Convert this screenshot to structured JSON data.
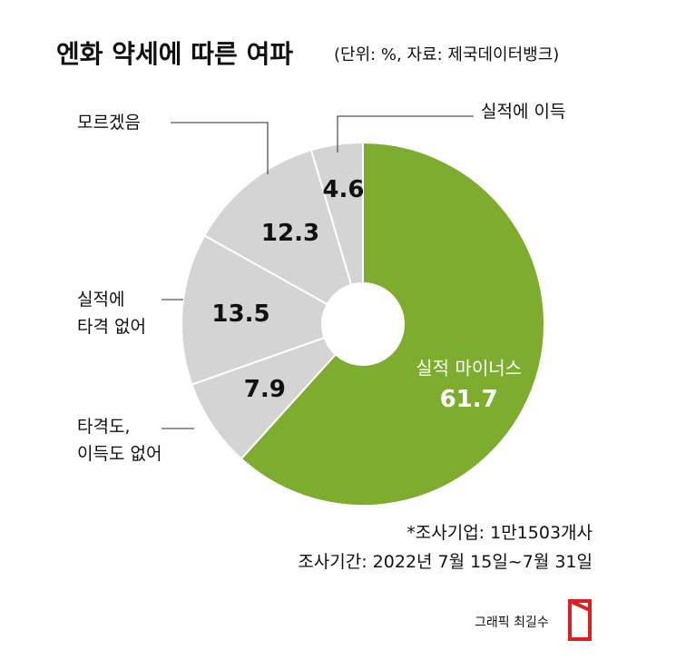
{
  "chart_data": {
    "type": "donut",
    "title": "엔화 약세에 따른 여파",
    "subtitle": "(단위: %, 자료: 제국데이터뱅크)",
    "categories": [
      "실적 마이너스",
      "타격도,\n이득도 없어",
      "실적에\n타격 없어",
      "모르겠음",
      "실적에 이득"
    ],
    "values": [
      61.7,
      7.9,
      13.5,
      12.3,
      4.6
    ],
    "colors": [
      "#7dac2e",
      "#d4d4d4",
      "#d4d4d4",
      "#d4d4d4",
      "#d4d4d4"
    ],
    "notes": [
      "*조사기업: 1만1503개사",
      "조사기간: 2022년 7월 15일~7월 31일"
    ],
    "credit": "그래픽 최길수"
  }
}
